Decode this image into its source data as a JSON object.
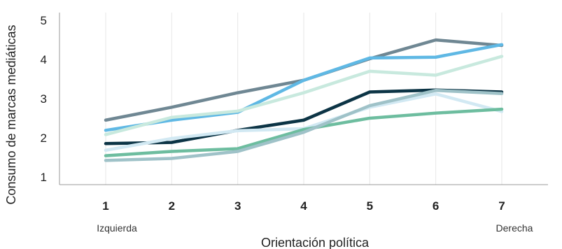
{
  "chart_data": {
    "type": "line",
    "xlabel": "Orientación política",
    "ylabel": "Consumo de marcas mediáticas",
    "x": [
      1,
      2,
      3,
      4,
      5,
      6,
      7
    ],
    "x_tick_labels": [
      "1",
      "2",
      "3",
      "4",
      "5",
      "6",
      "7"
    ],
    "x_end_labels": {
      "left": "Izquierda",
      "right": "Derecha"
    },
    "y_ticks": [
      "1",
      "2",
      "3",
      "4",
      "5"
    ],
    "xlim": [
      0.3,
      7.7
    ],
    "ylim": [
      0.8,
      5.2
    ],
    "grid": true,
    "series": [
      {
        "color": "#6f8793",
        "values": [
          2.45,
          2.78,
          3.15,
          3.47,
          4.02,
          4.5,
          4.36
        ]
      },
      {
        "color": "#5fb8e4",
        "values": [
          2.19,
          2.45,
          2.65,
          3.47,
          4.04,
          4.06,
          4.38
        ]
      },
      {
        "color": "#c8e9de",
        "values": [
          2.08,
          2.52,
          2.68,
          3.15,
          3.7,
          3.6,
          4.08
        ]
      },
      {
        "color": "#0c3445",
        "values": [
          1.85,
          1.88,
          2.19,
          2.45,
          3.17,
          3.22,
          3.17
        ]
      },
      {
        "color": "#d2e9f3",
        "values": [
          1.68,
          1.98,
          2.18,
          2.23,
          2.78,
          3.12,
          2.67
        ]
      },
      {
        "color": "#6dbd9f",
        "values": [
          1.54,
          1.65,
          1.72,
          2.21,
          2.5,
          2.63,
          2.73
        ]
      },
      {
        "color": "#9fc2c8",
        "values": [
          1.42,
          1.47,
          1.65,
          2.14,
          2.82,
          3.21,
          3.13
        ]
      }
    ]
  }
}
